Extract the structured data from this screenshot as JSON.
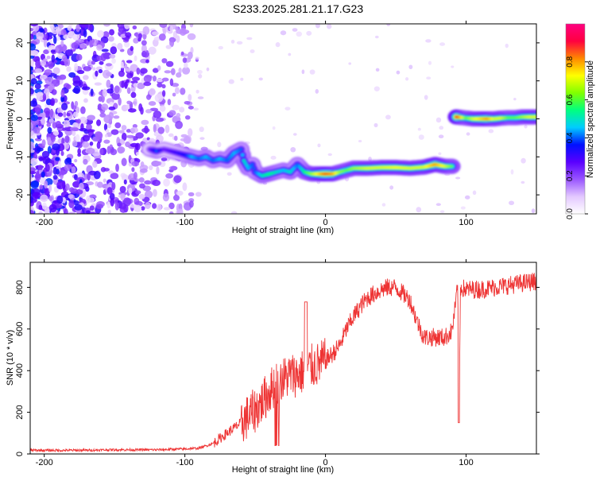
{
  "title": "S233.2025.281.21.17.G23",
  "chart_data": [
    {
      "type": "heatmap",
      "panel": "spectrogram",
      "xlabel": "Height of straight line (km)",
      "ylabel": "Frequency (Hz)",
      "xlim": [
        -210,
        150
      ],
      "ylim": [
        -25,
        25
      ],
      "xticks": [
        -200,
        -100,
        0,
        100
      ],
      "yticks": [
        -20,
        -10,
        0,
        10,
        20
      ],
      "colorbar": {
        "label": "Normalized spectral amplitude",
        "range": [
          0,
          1
        ],
        "ticks": [
          "0.0",
          "0.2",
          "0.4",
          "0.6",
          "0.8"
        ],
        "tick_values": [
          0,
          0.2,
          0.4,
          0.6,
          0.8
        ],
        "colors": [
          "#ffffff",
          "#e3c8ff",
          "#9955ff",
          "#5a00ff",
          "#0010ff",
          "#00ccff",
          "#00ff80",
          "#80ff00",
          "#ffff00",
          "#ff8800",
          "#ff0040",
          "#ff0080"
        ]
      },
      "signal_track": [
        [
          -125,
          -8,
          0.25
        ],
        [
          -120,
          -8.5,
          0.4
        ],
        [
          -115,
          -8,
          0.25
        ],
        [
          -100,
          -9.5,
          0.35
        ],
        [
          -95,
          -10,
          0.45
        ],
        [
          -90,
          -10.5,
          0.4
        ],
        [
          -85,
          -10,
          0.45
        ],
        [
          -80,
          -11,
          0.4
        ],
        [
          -75,
          -10.5,
          0.45
        ],
        [
          -70,
          -11,
          0.4
        ],
        [
          -65,
          -9,
          0.45
        ],
        [
          -60,
          -8,
          0.4
        ],
        [
          -58,
          -11,
          0.5
        ],
        [
          -55,
          -13,
          0.45
        ],
        [
          -52,
          -12,
          0.4
        ],
        [
          -50,
          -14,
          0.4
        ],
        [
          -45,
          -15,
          0.5
        ],
        [
          -40,
          -14.5,
          0.55
        ],
        [
          -35,
          -14,
          0.5
        ],
        [
          -30,
          -13.5,
          0.45
        ],
        [
          -25,
          -14,
          0.5
        ],
        [
          -20,
          -12,
          0.4
        ],
        [
          -15,
          -14,
          0.55
        ],
        [
          -10,
          -14.5,
          0.65
        ],
        [
          -5,
          -14.5,
          0.75
        ],
        [
          0,
          -14.5,
          0.85
        ],
        [
          5,
          -14.5,
          0.8
        ],
        [
          10,
          -14,
          0.65
        ],
        [
          15,
          -13.5,
          0.6
        ],
        [
          20,
          -13,
          0.65
        ],
        [
          30,
          -13,
          0.7
        ],
        [
          40,
          -12.8,
          0.7
        ],
        [
          50,
          -12.8,
          0.72
        ],
        [
          60,
          -13,
          0.7
        ],
        [
          70,
          -12.7,
          0.7
        ],
        [
          78,
          -12,
          0.8
        ],
        [
          85,
          -12.5,
          0.7
        ],
        [
          90,
          -12.5,
          0.6
        ],
        [
          93,
          0.5,
          0.9
        ],
        [
          100,
          0.2,
          0.6
        ],
        [
          105,
          0,
          0.7
        ],
        [
          110,
          0,
          0.75
        ],
        [
          115,
          0,
          0.8
        ],
        [
          120,
          0,
          0.7
        ],
        [
          125,
          0.2,
          0.7
        ],
        [
          130,
          0.3,
          0.6
        ],
        [
          135,
          0.3,
          0.6
        ],
        [
          140,
          0.5,
          0.65
        ],
        [
          145,
          0.5,
          0.7
        ],
        [
          150,
          0.5,
          0.7
        ]
      ],
      "noise_region_x": [
        -210,
        -95
      ]
    },
    {
      "type": "line",
      "panel": "snr",
      "xlabel": "Height of straight line (km)",
      "ylabel": "SNR (10 * v/v)",
      "xlim": [
        -210,
        150
      ],
      "ylim": [
        0,
        920
      ],
      "xticks": [
        -200,
        -100,
        0,
        100
      ],
      "yticks": [
        0,
        200,
        400,
        600,
        800
      ],
      "color": "#ee3333",
      "series": [
        {
          "name": "SNR",
          "x": [
            -210,
            -190,
            -170,
            -150,
            -130,
            -120,
            -110,
            -100,
            -90,
            -80,
            -70,
            -60,
            -50,
            -45,
            -40,
            -35,
            -30,
            -25,
            -20,
            -15,
            -10,
            -5,
            0,
            5,
            10,
            15,
            20,
            25,
            30,
            35,
            40,
            45,
            50,
            55,
            60,
            65,
            70,
            75,
            80,
            85,
            90,
            94,
            95,
            96,
            100,
            110,
            120,
            130,
            140,
            150
          ],
          "y": [
            18,
            17,
            18,
            20,
            20,
            20,
            22,
            24,
            28,
            50,
            100,
            150,
            210,
            250,
            300,
            340,
            360,
            380,
            380,
            400,
            420,
            430,
            450,
            480,
            520,
            600,
            660,
            710,
            750,
            770,
            790,
            800,
            800,
            770,
            740,
            640,
            560,
            560,
            560,
            560,
            590,
            800,
            150,
            800,
            790,
            790,
            800,
            810,
            820,
            830
          ]
        }
      ]
    }
  ]
}
